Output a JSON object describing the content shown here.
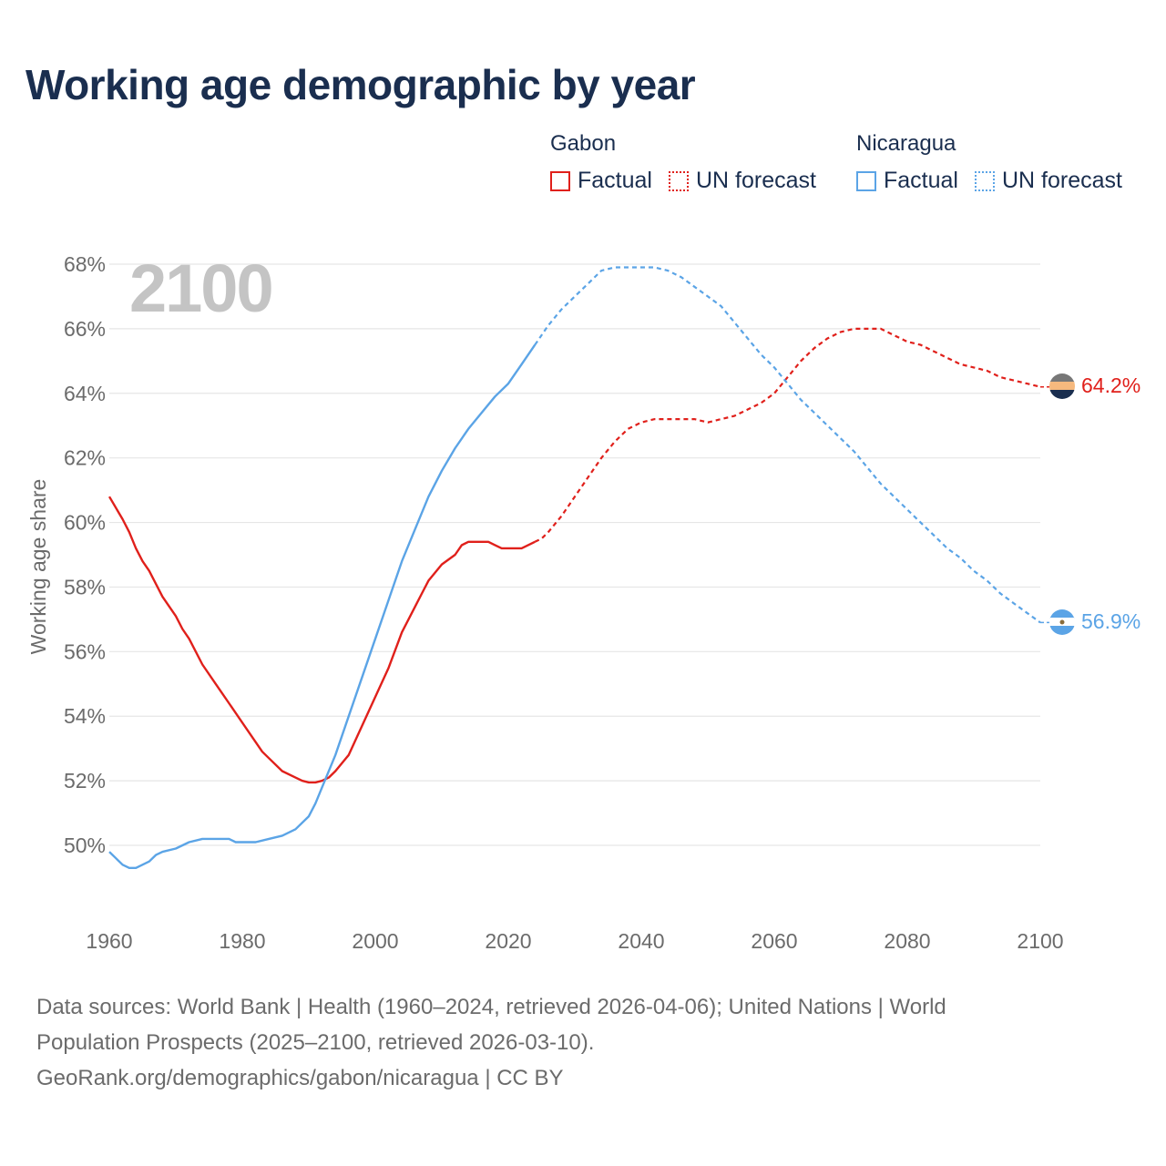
{
  "title": "Working age demographic by year",
  "legend": [
    {
      "country": "Gabon",
      "factual_label": "Factual",
      "forecast_label": "UN forecast",
      "color": "#e0201b"
    },
    {
      "country": "Nicaragua",
      "factual_label": "Factual",
      "forecast_label": "UN forecast",
      "color": "#5ba4e6"
    }
  ],
  "year_watermark": "2100",
  "end_labels": {
    "gabon": "64.2%",
    "nicaragua": "56.9%"
  },
  "footer": {
    "line1": "Data sources: World Bank | Health (1960–2024, retrieved 2026-04-06); United Nations | World",
    "line2": "Population Prospects (2025–2100, retrieved 2026-03-10).",
    "line3": "GeoRank.org/demographics/gabon/nicaragua | CC BY"
  },
  "chart_data": {
    "type": "line",
    "title": "Working age demographic by year",
    "xlabel": "",
    "ylabel": "Working age share",
    "xlim": [
      1960,
      2100
    ],
    "ylim": [
      48,
      68
    ],
    "x_ticks": [
      "1960",
      "1980",
      "2000",
      "2020",
      "2040",
      "2060",
      "2080",
      "2100"
    ],
    "y_ticks": [
      "50%",
      "52%",
      "54%",
      "56%",
      "58%",
      "60%",
      "62%",
      "64%",
      "66%",
      "68%"
    ],
    "factual_end_year": 2024,
    "series": [
      {
        "name": "Gabon",
        "color": "#e0201b",
        "points": [
          [
            1960,
            60.8
          ],
          [
            1962,
            60.1
          ],
          [
            1963,
            59.7
          ],
          [
            1964,
            59.2
          ],
          [
            1965,
            58.8
          ],
          [
            1966,
            58.5
          ],
          [
            1968,
            57.7
          ],
          [
            1970,
            57.1
          ],
          [
            1971,
            56.7
          ],
          [
            1972,
            56.4
          ],
          [
            1974,
            55.6
          ],
          [
            1976,
            55.0
          ],
          [
            1978,
            54.4
          ],
          [
            1980,
            53.8
          ],
          [
            1982,
            53.2
          ],
          [
            1983,
            52.9
          ],
          [
            1984,
            52.7
          ],
          [
            1986,
            52.3
          ],
          [
            1988,
            52.1
          ],
          [
            1989,
            52.0
          ],
          [
            1990,
            51.95
          ],
          [
            1991,
            51.95
          ],
          [
            1992,
            52.0
          ],
          [
            1993,
            52.1
          ],
          [
            1994,
            52.3
          ],
          [
            1996,
            52.8
          ],
          [
            1998,
            53.7
          ],
          [
            2000,
            54.6
          ],
          [
            2002,
            55.5
          ],
          [
            2004,
            56.6
          ],
          [
            2006,
            57.4
          ],
          [
            2007,
            57.8
          ],
          [
            2008,
            58.2
          ],
          [
            2010,
            58.7
          ],
          [
            2012,
            59.0
          ],
          [
            2013,
            59.3
          ],
          [
            2014,
            59.4
          ],
          [
            2016,
            59.4
          ],
          [
            2017,
            59.4
          ],
          [
            2018,
            59.3
          ],
          [
            2019,
            59.2
          ],
          [
            2020,
            59.2
          ],
          [
            2022,
            59.2
          ],
          [
            2024,
            59.4
          ],
          [
            2025,
            59.5
          ],
          [
            2026,
            59.7
          ],
          [
            2028,
            60.2
          ],
          [
            2030,
            60.8
          ],
          [
            2032,
            61.4
          ],
          [
            2034,
            62.0
          ],
          [
            2036,
            62.5
          ],
          [
            2038,
            62.9
          ],
          [
            2040,
            63.1
          ],
          [
            2042,
            63.2
          ],
          [
            2044,
            63.2
          ],
          [
            2046,
            63.2
          ],
          [
            2048,
            63.2
          ],
          [
            2050,
            63.1
          ],
          [
            2052,
            63.2
          ],
          [
            2054,
            63.3
          ],
          [
            2056,
            63.5
          ],
          [
            2058,
            63.7
          ],
          [
            2060,
            64.0
          ],
          [
            2062,
            64.5
          ],
          [
            2064,
            65.0
          ],
          [
            2066,
            65.4
          ],
          [
            2068,
            65.7
          ],
          [
            2070,
            65.9
          ],
          [
            2072,
            66.0
          ],
          [
            2074,
            66.0
          ],
          [
            2076,
            66.0
          ],
          [
            2078,
            65.8
          ],
          [
            2080,
            65.6
          ],
          [
            2082,
            65.5
          ],
          [
            2084,
            65.3
          ],
          [
            2086,
            65.1
          ],
          [
            2088,
            64.9
          ],
          [
            2090,
            64.8
          ],
          [
            2092,
            64.7
          ],
          [
            2094,
            64.5
          ],
          [
            2096,
            64.4
          ],
          [
            2098,
            64.3
          ],
          [
            2100,
            64.2
          ]
        ]
      },
      {
        "name": "Nicaragua",
        "color": "#5ba4e6",
        "points": [
          [
            1960,
            49.8
          ],
          [
            1961,
            49.6
          ],
          [
            1962,
            49.4
          ],
          [
            1963,
            49.3
          ],
          [
            1964,
            49.3
          ],
          [
            1966,
            49.5
          ],
          [
            1967,
            49.7
          ],
          [
            1968,
            49.8
          ],
          [
            1970,
            49.9
          ],
          [
            1972,
            50.1
          ],
          [
            1974,
            50.2
          ],
          [
            1976,
            50.2
          ],
          [
            1978,
            50.2
          ],
          [
            1979,
            50.1
          ],
          [
            1980,
            50.1
          ],
          [
            1982,
            50.1
          ],
          [
            1984,
            50.2
          ],
          [
            1986,
            50.3
          ],
          [
            1988,
            50.5
          ],
          [
            1990,
            50.9
          ],
          [
            1991,
            51.3
          ],
          [
            1992,
            51.8
          ],
          [
            1994,
            52.8
          ],
          [
            1996,
            54.0
          ],
          [
            1998,
            55.2
          ],
          [
            2000,
            56.4
          ],
          [
            2002,
            57.6
          ],
          [
            2004,
            58.8
          ],
          [
            2006,
            59.8
          ],
          [
            2008,
            60.8
          ],
          [
            2010,
            61.6
          ],
          [
            2012,
            62.3
          ],
          [
            2014,
            62.9
          ],
          [
            2016,
            63.4
          ],
          [
            2018,
            63.9
          ],
          [
            2020,
            64.3
          ],
          [
            2022,
            64.9
          ],
          [
            2024,
            65.5
          ],
          [
            2025,
            65.8
          ],
          [
            2026,
            66.1
          ],
          [
            2028,
            66.6
          ],
          [
            2030,
            67.0
          ],
          [
            2032,
            67.4
          ],
          [
            2034,
            67.8
          ],
          [
            2036,
            67.9
          ],
          [
            2038,
            67.9
          ],
          [
            2040,
            67.9
          ],
          [
            2042,
            67.9
          ],
          [
            2044,
            67.8
          ],
          [
            2046,
            67.6
          ],
          [
            2048,
            67.3
          ],
          [
            2050,
            67.0
          ],
          [
            2052,
            66.7
          ],
          [
            2054,
            66.2
          ],
          [
            2056,
            65.7
          ],
          [
            2058,
            65.2
          ],
          [
            2060,
            64.8
          ],
          [
            2062,
            64.3
          ],
          [
            2064,
            63.8
          ],
          [
            2066,
            63.4
          ],
          [
            2068,
            63.0
          ],
          [
            2070,
            62.6
          ],
          [
            2072,
            62.2
          ],
          [
            2074,
            61.7
          ],
          [
            2076,
            61.2
          ],
          [
            2078,
            60.8
          ],
          [
            2080,
            60.4
          ],
          [
            2082,
            60.0
          ],
          [
            2084,
            59.6
          ],
          [
            2086,
            59.2
          ],
          [
            2088,
            58.9
          ],
          [
            2090,
            58.5
          ],
          [
            2092,
            58.2
          ],
          [
            2094,
            57.8
          ],
          [
            2096,
            57.5
          ],
          [
            2098,
            57.2
          ],
          [
            2100,
            56.9
          ]
        ]
      }
    ]
  }
}
